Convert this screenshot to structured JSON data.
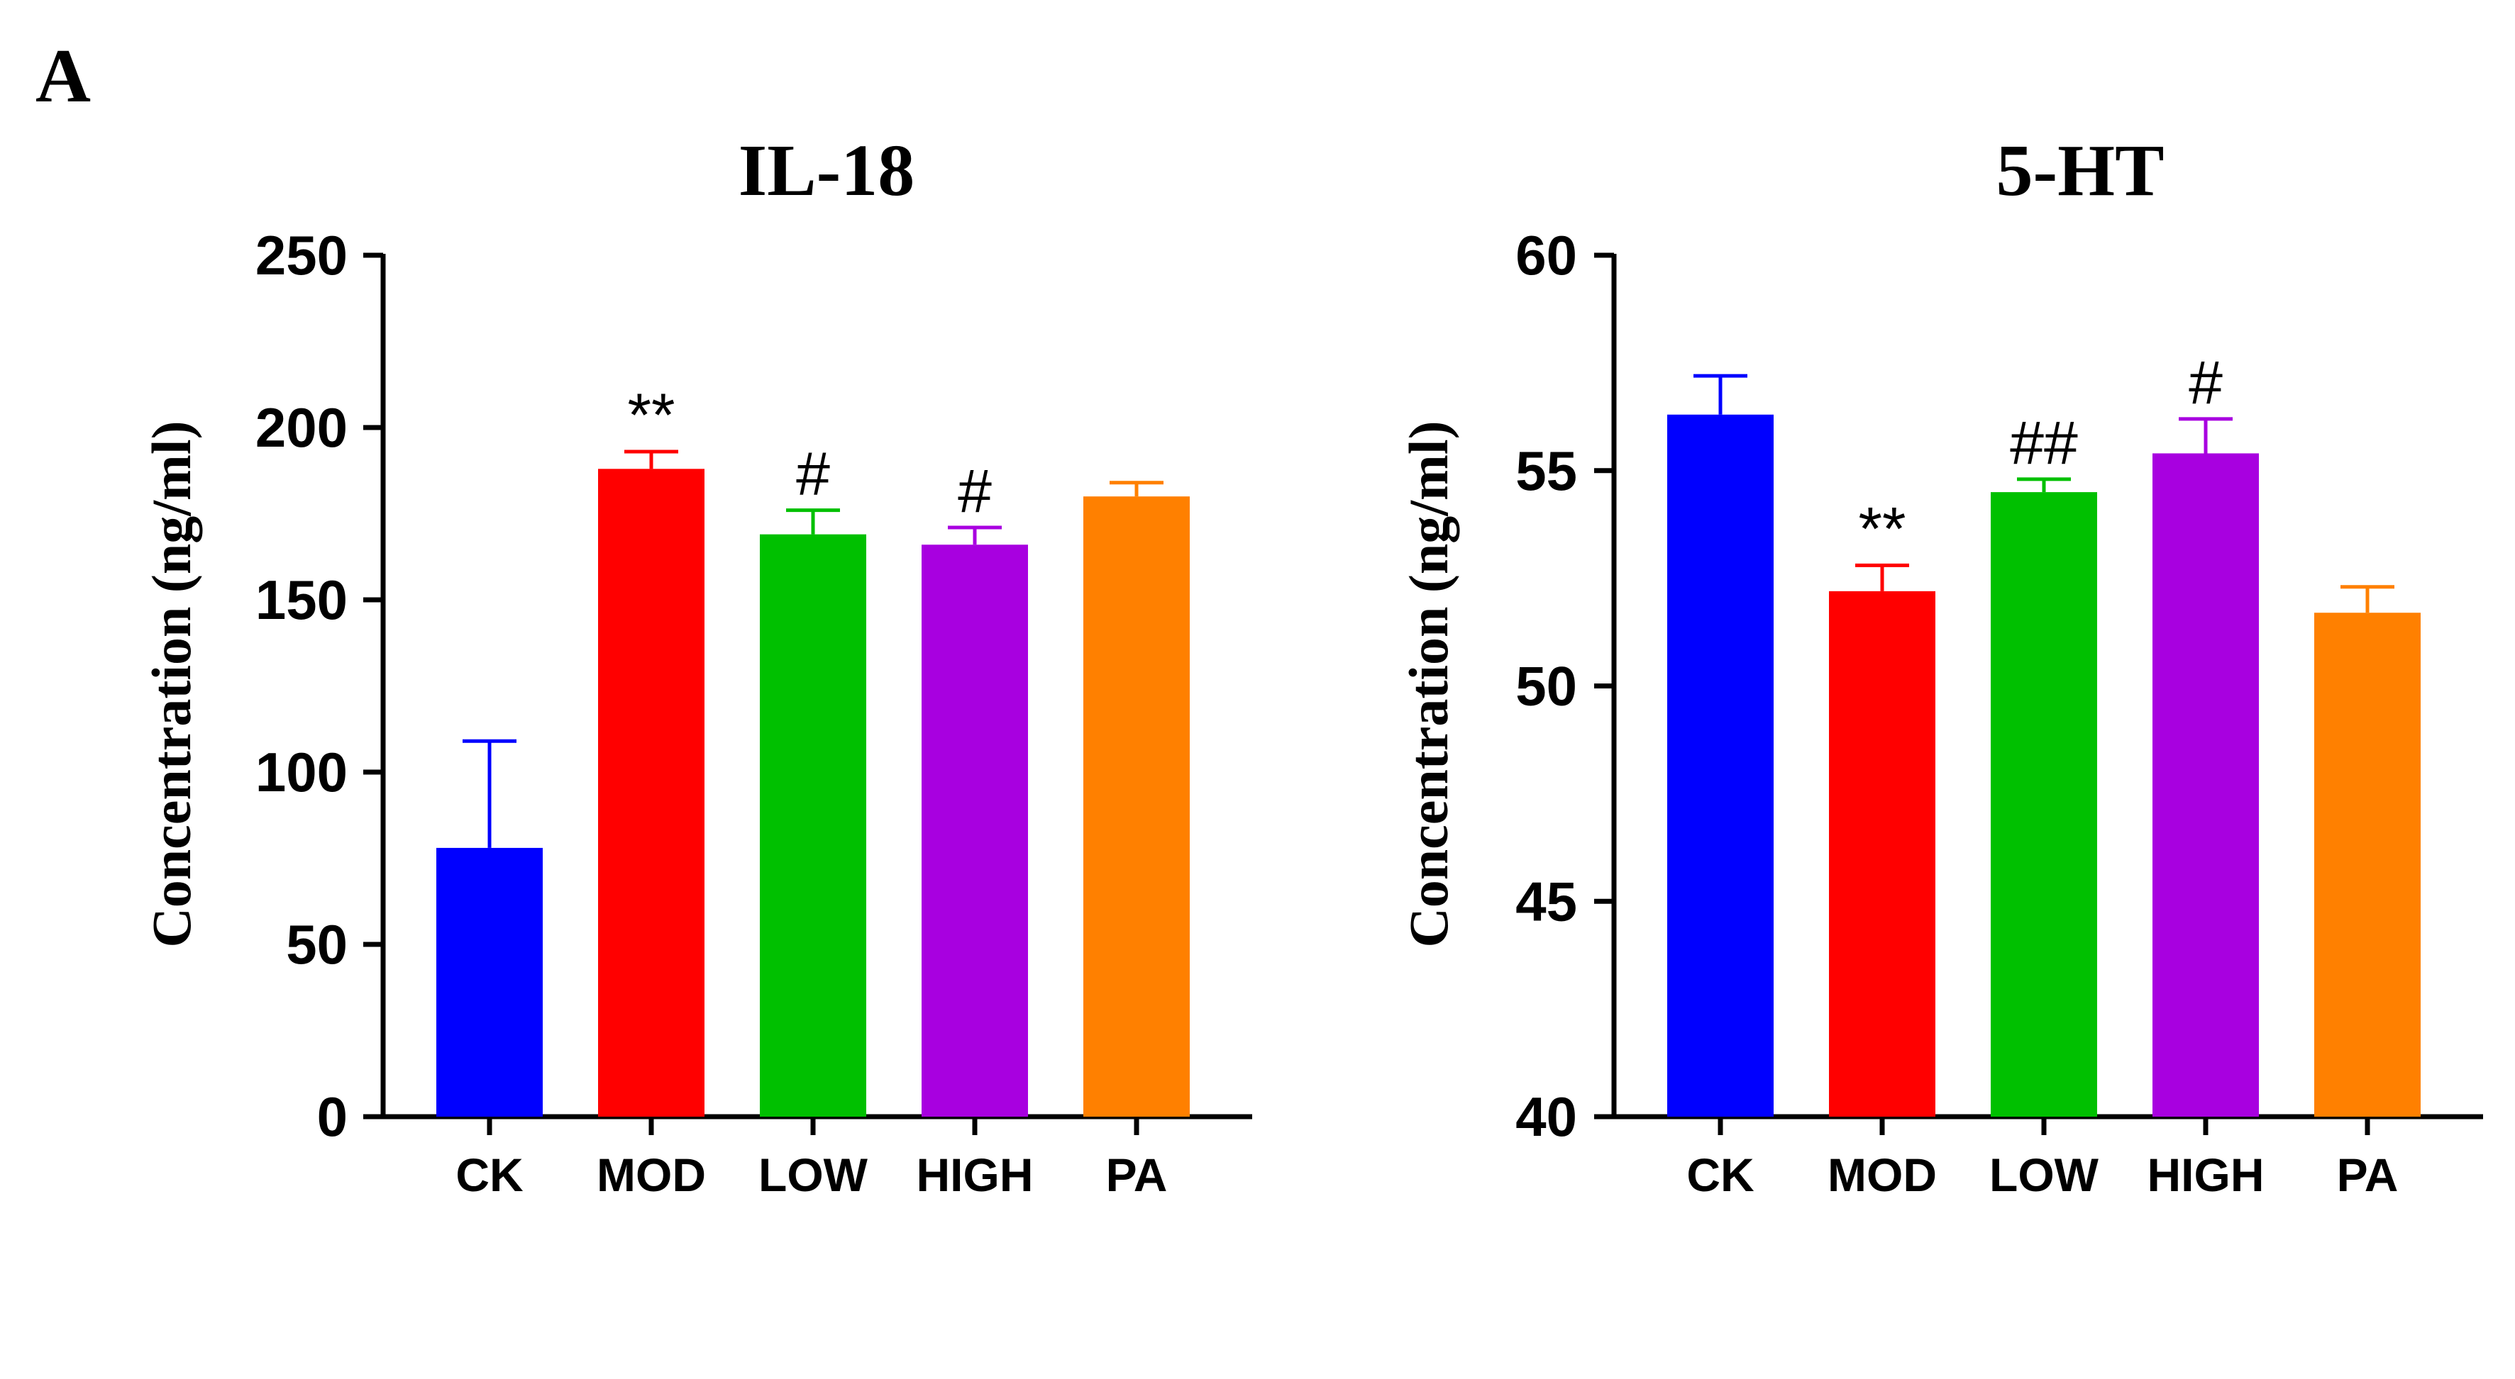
{
  "panel_label": "A",
  "chart_data": [
    {
      "type": "bar",
      "title": "IL-18",
      "xlabel": "",
      "ylabel": "Concentration (ng/ml)",
      "categories": [
        "CK",
        "MOD",
        "LOW",
        "HIGH",
        "PA"
      ],
      "values": [
        78,
        188,
        169,
        166,
        180
      ],
      "errors": [
        31,
        5,
        7,
        5,
        4
      ],
      "annotations": [
        "",
        "**",
        "#",
        "#",
        ""
      ],
      "colors": [
        "#0000ff",
        "#ff0000",
        "#00c000",
        "#a800e0",
        "#ff8000"
      ],
      "ylim": [
        0,
        250
      ],
      "yticks": [
        0,
        50,
        100,
        150,
        200,
        250
      ],
      "grid": false
    },
    {
      "type": "bar",
      "title": "5-HT",
      "xlabel": "",
      "ylabel": "Concentration (ng/ml)",
      "categories": [
        "CK",
        "MOD",
        "LOW",
        "HIGH",
        "PA"
      ],
      "values": [
        56.3,
        52.2,
        54.5,
        55.4,
        51.7
      ],
      "errors": [
        0.9,
        0.6,
        0.3,
        0.8,
        0.6
      ],
      "annotations": [
        "",
        "**",
        "##",
        "#",
        ""
      ],
      "colors": [
        "#0000ff",
        "#ff0000",
        "#00c000",
        "#a800e0",
        "#ff8000"
      ],
      "ylim": [
        40,
        60
      ],
      "yticks": [
        40,
        45,
        50,
        55,
        60
      ],
      "grid": false
    }
  ]
}
